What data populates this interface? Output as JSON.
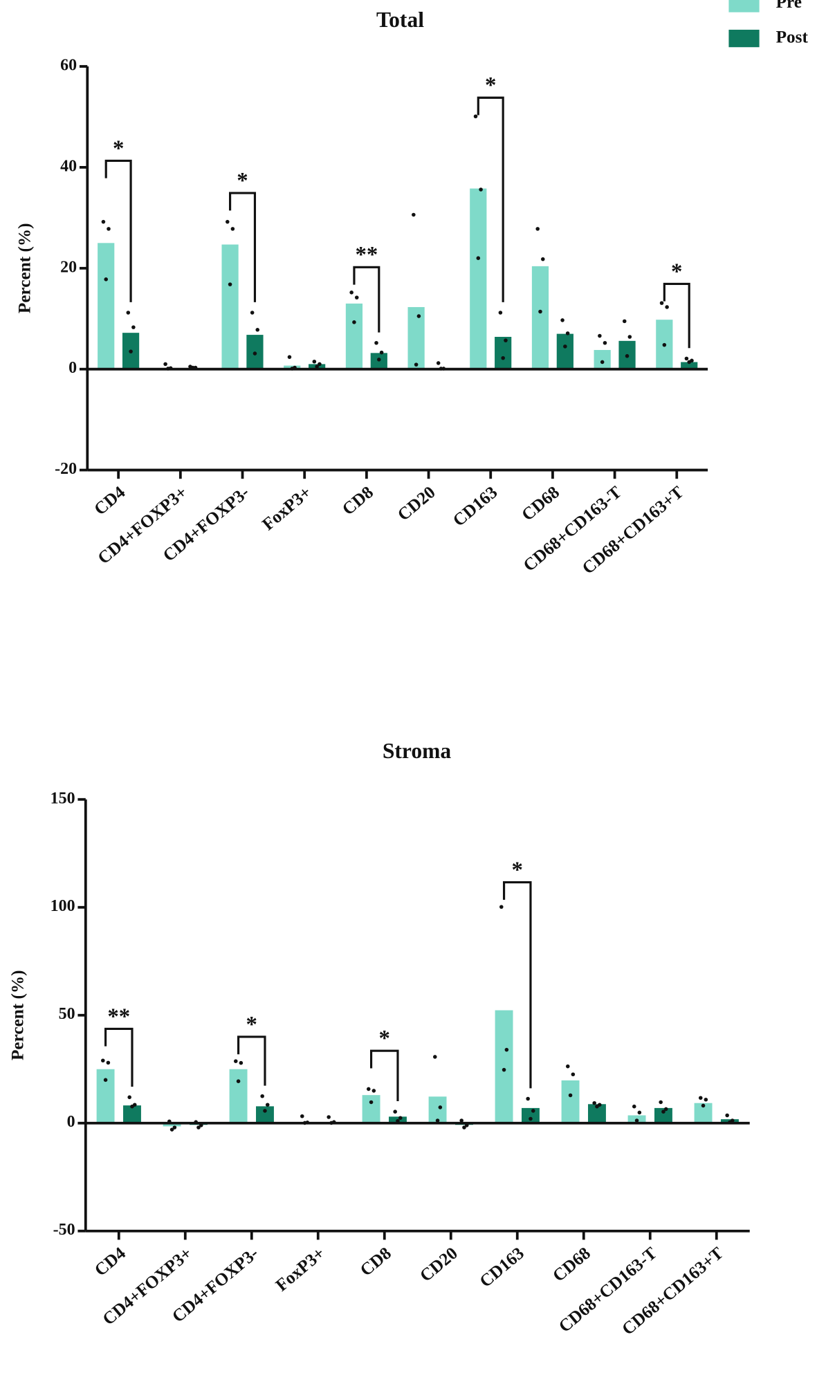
{
  "chart_data": [
    {
      "type": "bar",
      "title": "Total",
      "y_label": "Percent (%)",
      "legend": "top-right",
      "categories": [
        "CD4",
        "CD4+FOXP3+",
        "CD4+FOXP3-",
        "FoxP3+",
        "CD8",
        "CD20",
        "CD163",
        "CD68",
        "CD68+CD163-T",
        "CD68+CD163+T"
      ],
      "series": [
        {
          "name": "Pre",
          "color": "#7fdac9",
          "values": [
            25,
            0.1,
            24.7,
            0.7,
            13,
            12.3,
            35.8,
            20.4,
            3.8,
            9.8
          ],
          "points": [
            [
              29.2,
              27.8,
              17.8
            ],
            [
              1.0,
              0.2,
              0.1
            ],
            [
              29.2,
              27.8,
              16.8
            ],
            [
              2.4,
              0.3,
              0.1
            ],
            [
              15.2,
              14.2,
              9.3
            ],
            [
              30.6,
              10.5,
              0.9
            ],
            [
              50.1,
              35.6,
              22.0
            ],
            [
              27.8,
              21.8,
              11.4
            ],
            [
              6.6,
              5.2,
              1.4
            ],
            [
              13.1,
              12.3,
              4.8
            ]
          ]
        },
        {
          "name": "Post",
          "color": "#0f7a5f",
          "values": [
            7.2,
            0.1,
            6.8,
            1.0,
            3.2,
            0.1,
            6.4,
            7.0,
            5.6,
            1.4
          ],
          "points": [
            [
              11.2,
              8.3,
              3.5
            ],
            [
              0.5,
              0.3,
              0.3
            ],
            [
              11.2,
              7.8,
              3.1
            ],
            [
              1.5,
              1.0,
              0.5
            ],
            [
              5.2,
              3.3,
              1.9
            ],
            [
              1.2,
              0.1,
              0.1
            ],
            [
              11.2,
              5.7,
              2.2
            ],
            [
              9.7,
              7.1,
              4.5
            ],
            [
              9.5,
              6.4,
              2.6
            ],
            [
              2.1,
              1.7,
              1.4
            ]
          ]
        }
      ],
      "ylim": [
        -20,
        60
      ],
      "yticks": [
        -20,
        0,
        20,
        40,
        60
      ],
      "brackets": [
        {
          "category": 0,
          "label": "*",
          "level": 41.3
        },
        {
          "category": 2,
          "label": "*",
          "level": 34.9
        },
        {
          "category": 4,
          "label": "**",
          "level": 20.2
        },
        {
          "category": 6,
          "label": "*",
          "level": 53.8
        },
        {
          "category": 9,
          "label": "*",
          "level": 16.9
        }
      ]
    },
    {
      "type": "bar",
      "title": "Stroma",
      "y_label": "Percent (%)",
      "categories": [
        "CD4",
        "CD4+FOXP3+",
        "CD4+FOXP3-",
        "FoxP3+",
        "CD8",
        "CD20",
        "CD163",
        "CD68",
        "CD68+CD163-T",
        "CD68+CD163+T"
      ],
      "series": [
        {
          "color": "#7fdac9",
          "values": [
            25,
            -1.5,
            25,
            0.2,
            13,
            12.3,
            52.3,
            19.8,
            3.6,
            9.3
          ],
          "points": [
            [
              29,
              28,
              20
            ],
            [
              0.8,
              -2,
              -3
            ],
            [
              28.7,
              27.9,
              19.4
            ],
            [
              3.2,
              0.3,
              0.1
            ],
            [
              15.8,
              15,
              9.7
            ],
            [
              30.7,
              7.3,
              1.2
            ],
            [
              100.2,
              34,
              24.7
            ],
            [
              26.3,
              22.6,
              12.9
            ],
            [
              7.7,
              4.9,
              1.2
            ],
            [
              11.7,
              10.9,
              8.1
            ]
          ]
        },
        {
          "color": "#0f7a5f",
          "values": [
            8.2,
            -0.8,
            7.8,
            0.5,
            3.0,
            -0.8,
            7.0,
            8.8,
            7.0,
            1.8
          ],
          "points": [
            [
              12,
              8.5,
              7.7
            ],
            [
              0.5,
              -1,
              -2
            ],
            [
              12.5,
              8.5,
              5.7
            ],
            [
              2.8,
              0.5,
              0.1
            ],
            [
              5.3,
              2.4,
              1
            ],
            [
              1.2,
              -1,
              -2
            ],
            [
              11.3,
              5.7,
              2
            ],
            [
              9.3,
              8.5,
              7.7
            ],
            [
              9.7,
              6.5,
              5.3
            ],
            [
              3.6,
              1.2,
              0.4
            ]
          ]
        }
      ],
      "ylim": [
        -50,
        150
      ],
      "yticks": [
        -50,
        0,
        50,
        100,
        150
      ],
      "brackets": [
        {
          "category": 0,
          "label": "**",
          "level": 43.7
        },
        {
          "category": 2,
          "label": "*",
          "level": 40
        },
        {
          "category": 4,
          "label": "*",
          "level": 33.5
        },
        {
          "category": 6,
          "label": "*",
          "level": 111.6
        }
      ]
    }
  ]
}
